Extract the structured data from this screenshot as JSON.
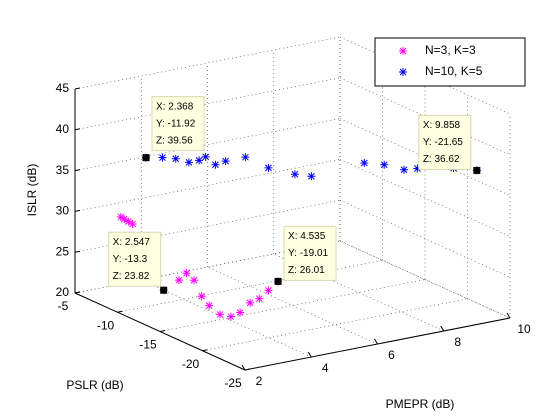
{
  "chart_data": {
    "type": "scatter3d",
    "xlabel": "PMEPR (dB)",
    "ylabel": "PSLR (dB)",
    "zlabel": "ISLR (dB)",
    "xlim": [
      2,
      10
    ],
    "xticks": [
      2,
      4,
      6,
      8,
      10
    ],
    "ylim": [
      -25,
      -5
    ],
    "yticks": [
      -25,
      -20,
      -15,
      -10,
      -5
    ],
    "zlim": [
      20,
      45
    ],
    "zticks": [
      20,
      25,
      30,
      35,
      40,
      45
    ],
    "grid": true,
    "legend": "top-right",
    "series": [
      {
        "name": "N=3, K=3",
        "color": "#ff00ff",
        "x": [
          2.1,
          2.15,
          2.2,
          2.25,
          2.547,
          2.7,
          2.8,
          2.9,
          3.0,
          3.1,
          3.3,
          3.5,
          3.7,
          3.9,
          4.1,
          4.3,
          4.535
        ],
        "y": [
          -10.0,
          -10.2,
          -10.5,
          -10.8,
          -13.3,
          -14.5,
          -15.0,
          -15.5,
          -16.0,
          -16.5,
          -17.0,
          -17.5,
          -17.8,
          -18.2,
          -18.5,
          -18.8,
          -19.01
        ],
        "z": [
          31.6,
          31.4,
          31.2,
          31.0,
          23.82,
          25.5,
          26.5,
          25.8,
          24.0,
          23.0,
          22.0,
          21.8,
          22.3,
          23.5,
          24.0,
          25.0,
          26.01
        ]
      },
      {
        "name": "N=10, K=5",
        "color": "#0000ff",
        "x": [
          2.368,
          2.74,
          3.04,
          3.34,
          3.57,
          3.72,
          3.94,
          4.17,
          4.62,
          5.14,
          5.74,
          6.11,
          7.31,
          7.76,
          8.21,
          8.51,
          9.33,
          9.858
        ],
        "y": [
          -11.92,
          -12.41,
          -12.8,
          -13.18,
          -13.48,
          -13.67,
          -13.96,
          -14.26,
          -14.84,
          -15.52,
          -16.3,
          -16.79,
          -18.34,
          -18.93,
          -19.51,
          -19.9,
          -20.97,
          -21.65
        ],
        "z": [
          39.56,
          39.5,
          39.3,
          38.8,
          39.0,
          39.4,
          38.4,
          38.8,
          39.2,
          37.8,
          36.9,
          36.6,
          38.0,
          37.7,
          37.0,
          37.1,
          37.0,
          36.62
        ]
      }
    ],
    "annotations": [
      {
        "x": 2.368,
        "y": -11.92,
        "z": 39.56,
        "label": [
          "X: 2.368",
          "Y: -11.92",
          "Z: 39.56"
        ]
      },
      {
        "x": 9.858,
        "y": -21.65,
        "z": 36.62,
        "label": [
          "X: 9.858",
          "Y: -21.65",
          "Z: 36.62"
        ]
      },
      {
        "x": 4.535,
        "y": -19.01,
        "z": 26.01,
        "label": [
          "X: 4.535",
          "Y: -19.01",
          "Z: 26.01"
        ]
      },
      {
        "x": 2.547,
        "y": -13.3,
        "z": 23.82,
        "label": [
          "X: 2.547",
          "Y: -13.3",
          "Z: 23.82"
        ]
      }
    ]
  }
}
